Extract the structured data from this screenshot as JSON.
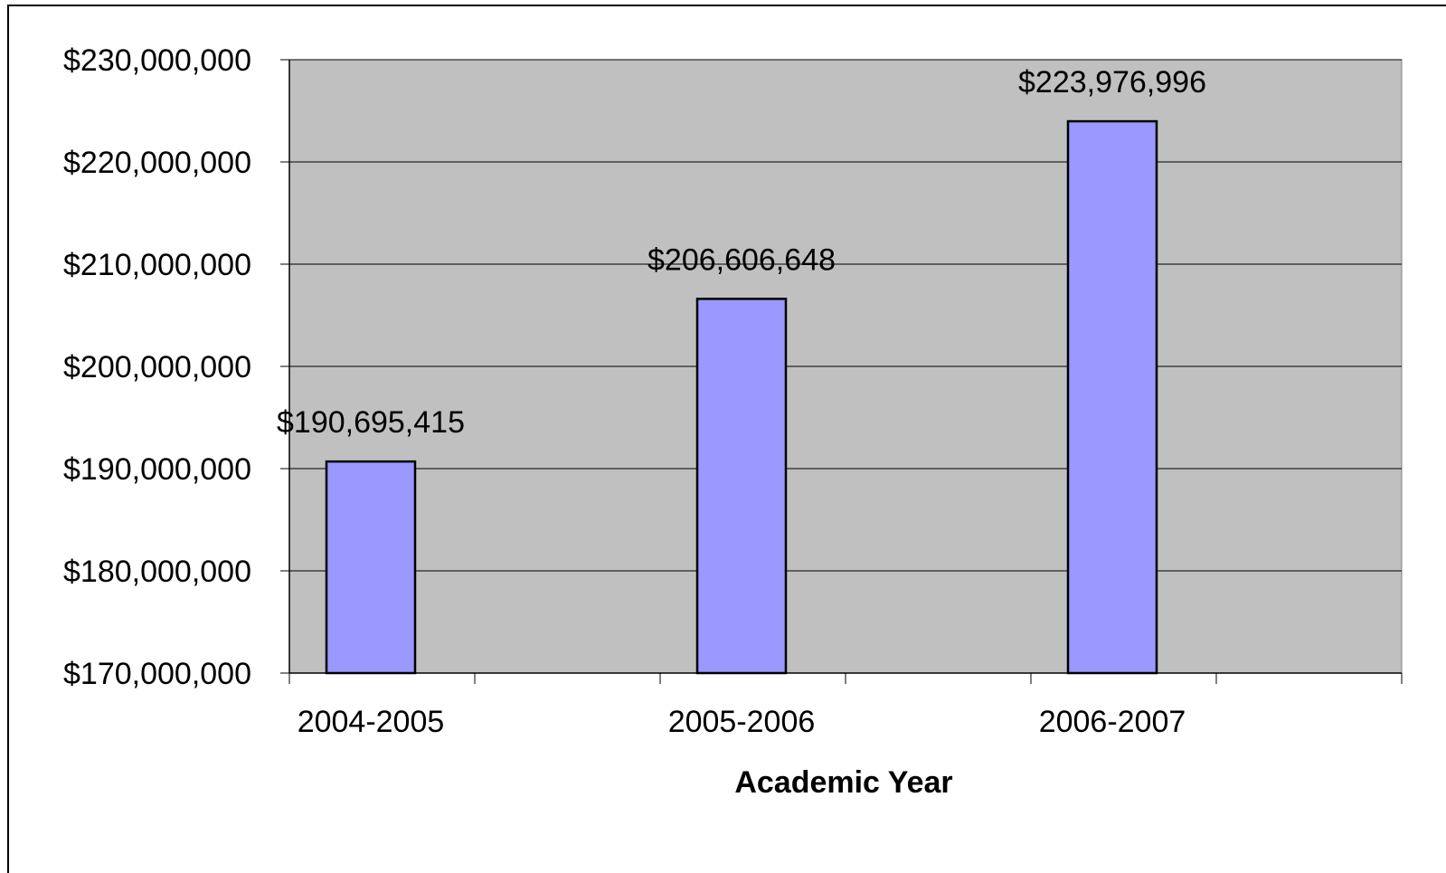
{
  "chart_data": {
    "type": "bar",
    "title": "",
    "xlabel": "Academic Year",
    "ylabel": "",
    "categories": [
      "2004-2005",
      "2005-2006",
      "2006-2007"
    ],
    "values": [
      190695415,
      206606648,
      223976996
    ],
    "data_labels": [
      "$190,695,415",
      "$206,606,648",
      "$223,976,996"
    ],
    "ylim": [
      170000000,
      230000000
    ],
    "y_ticks": [
      170000000,
      180000000,
      190000000,
      200000000,
      210000000,
      220000000,
      230000000
    ],
    "y_tick_labels": [
      "$170,000,000",
      "$180,000,000",
      "$190,000,000",
      "$200,000,000",
      "$210,000,000",
      "$220,000,000",
      "$230,000,000"
    ],
    "grid": true,
    "legend": "none",
    "colors": {
      "bar_fill": "#9999ff",
      "plot_background": "#c0c0c0",
      "gridline": "#000000"
    }
  }
}
